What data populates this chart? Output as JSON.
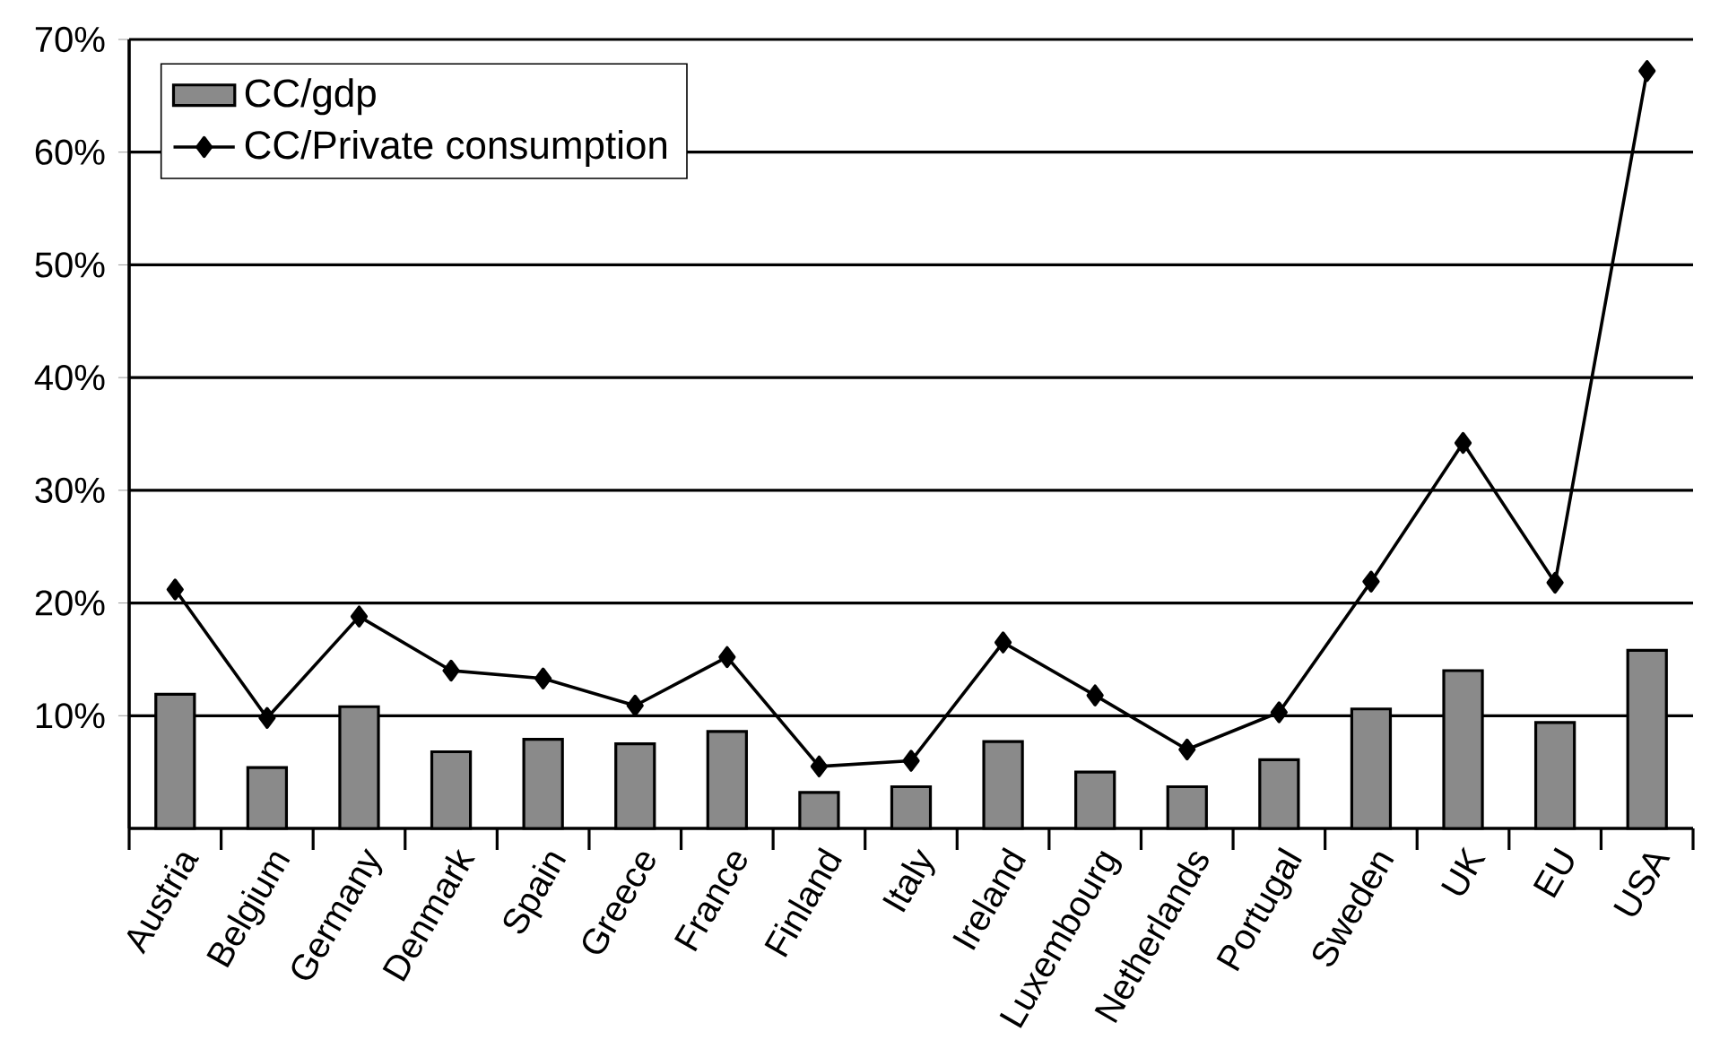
{
  "chart_data": {
    "type": "bar",
    "categories": [
      "Austria",
      "Belgium",
      "Germany",
      "Denmark",
      "Spain",
      "Greece",
      "France",
      "Finland",
      "Italy",
      "Ireland",
      "Luxembourg",
      "Netherlands",
      "Portugal",
      "Sweden",
      "UK",
      "EU",
      "USA"
    ],
    "series": [
      {
        "name": "CC/gdp",
        "color": "#8a8a8a",
        "values": [
          11.9,
          5.4,
          10.8,
          6.8,
          7.9,
          7.5,
          8.6,
          3.2,
          3.7,
          7.7,
          5.0,
          3.7,
          6.1,
          10.6,
          14.0,
          9.4,
          15.8
        ]
      },
      {
        "name": "CC/Private consumption",
        "type": "line",
        "color": "#000000",
        "marker": "diamond",
        "values": [
          21.2,
          9.8,
          18.8,
          14.0,
          13.3,
          10.9,
          15.2,
          5.5,
          6.0,
          16.5,
          11.8,
          7.0,
          10.3,
          21.9,
          34.2,
          21.8,
          67.2
        ]
      }
    ],
    "ylim": [
      0,
      70
    ],
    "yticks": [
      {
        "value": 10,
        "label": "10%"
      },
      {
        "value": 20,
        "label": "20%"
      },
      {
        "value": 30,
        "label": "30%"
      },
      {
        "value": 40,
        "label": "40%"
      },
      {
        "value": 50,
        "label": "50%"
      },
      {
        "value": 60,
        "label": "60%"
      },
      {
        "value": 70,
        "label": "70%"
      }
    ],
    "grid": "y",
    "legend": "top left"
  }
}
